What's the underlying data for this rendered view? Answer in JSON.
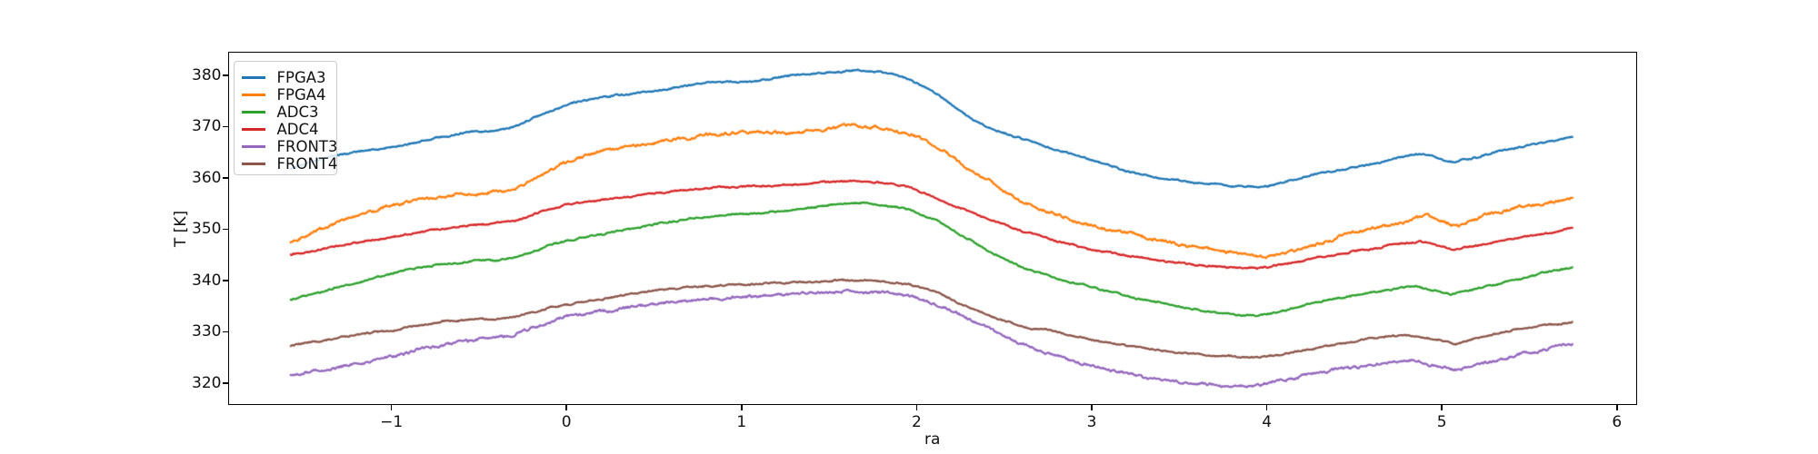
{
  "figure": {
    "background": "#ffffff",
    "text_color": "#111111",
    "spine_color": "#000000"
  },
  "chart_data": {
    "type": "line",
    "title": "",
    "xlabel": "ra",
    "ylabel": "T [K]",
    "xlim": [
      -1.93,
      6.11
    ],
    "ylim": [
      315.9,
      384.4
    ],
    "grid": false,
    "legend_position": "upper-left",
    "xticks": [
      {
        "v": -1,
        "label": "−1"
      },
      {
        "v": 0,
        "label": "0"
      },
      {
        "v": 1,
        "label": "1"
      },
      {
        "v": 2,
        "label": "2"
      },
      {
        "v": 3,
        "label": "3"
      },
      {
        "v": 4,
        "label": "4"
      },
      {
        "v": 5,
        "label": "5"
      },
      {
        "v": 6,
        "label": "6"
      }
    ],
    "yticks": [
      {
        "v": 320,
        "label": "320"
      },
      {
        "v": 330,
        "label": "330"
      },
      {
        "v": 340,
        "label": "340"
      },
      {
        "v": 350,
        "label": "350"
      },
      {
        "v": 360,
        "label": "360"
      },
      {
        "v": 370,
        "label": "370"
      },
      {
        "v": 380,
        "label": "380"
      }
    ],
    "series": [
      {
        "name": "FPGA3",
        "color": "#1f77b4",
        "noise": 0.18,
        "points": [
          [
            -1.58,
            361.6
          ],
          [
            -1.45,
            363.2
          ],
          [
            -1.3,
            364.5
          ],
          [
            -1.15,
            365.4
          ],
          [
            -1.0,
            366.0
          ],
          [
            -0.85,
            367.0
          ],
          [
            -0.7,
            368.0
          ],
          [
            -0.55,
            368.9
          ],
          [
            -0.42,
            369.2
          ],
          [
            -0.33,
            369.6
          ],
          [
            -0.22,
            371.3
          ],
          [
            -0.1,
            372.9
          ],
          [
            0,
            374.2
          ],
          [
            0.15,
            375.3
          ],
          [
            0.3,
            376.1
          ],
          [
            0.5,
            376.9
          ],
          [
            0.65,
            377.8
          ],
          [
            0.8,
            378.6
          ],
          [
            0.95,
            378.7
          ],
          [
            1.05,
            378.5
          ],
          [
            1.2,
            379.5
          ],
          [
            1.35,
            380.2
          ],
          [
            1.5,
            380.6
          ],
          [
            1.65,
            381.0
          ],
          [
            1.8,
            380.6
          ],
          [
            1.95,
            379.2
          ],
          [
            2.05,
            377.6
          ],
          [
            2.15,
            375.6
          ],
          [
            2.3,
            371.8
          ],
          [
            2.45,
            369.3
          ],
          [
            2.6,
            367.7
          ],
          [
            2.75,
            365.9
          ],
          [
            3.0,
            363.5
          ],
          [
            3.2,
            361.4
          ],
          [
            3.4,
            359.9
          ],
          [
            3.6,
            359.0
          ],
          [
            3.8,
            358.4
          ],
          [
            3.95,
            358.2
          ],
          [
            4.1,
            359.2
          ],
          [
            4.25,
            360.5
          ],
          [
            4.4,
            361.4
          ],
          [
            4.55,
            362.2
          ],
          [
            4.7,
            363.4
          ],
          [
            4.85,
            364.8
          ],
          [
            4.95,
            364.2
          ],
          [
            5.07,
            363.1
          ],
          [
            5.2,
            364.0
          ],
          [
            5.35,
            365.3
          ],
          [
            5.5,
            366.3
          ],
          [
            5.65,
            367.4
          ],
          [
            5.75,
            368.1
          ]
        ]
      },
      {
        "name": "FPGA4",
        "color": "#ff7f0e",
        "noise": 0.33,
        "points": [
          [
            -1.58,
            347.4
          ],
          [
            -1.45,
            349.3
          ],
          [
            -1.3,
            351.5
          ],
          [
            -1.2,
            352.7
          ],
          [
            -1.1,
            353.7
          ],
          [
            -1.0,
            354.7
          ],
          [
            -0.9,
            355.3
          ],
          [
            -0.75,
            356.1
          ],
          [
            -0.6,
            356.7
          ],
          [
            -0.45,
            357.1
          ],
          [
            -0.33,
            357.6
          ],
          [
            -0.25,
            358.6
          ],
          [
            -0.15,
            360.3
          ],
          [
            -0.05,
            362.2
          ],
          [
            0.05,
            363.7
          ],
          [
            0.2,
            365.2
          ],
          [
            0.35,
            366.1
          ],
          [
            0.5,
            366.9
          ],
          [
            0.65,
            367.7
          ],
          [
            0.8,
            368.3
          ],
          [
            0.95,
            368.7
          ],
          [
            1.1,
            368.9
          ],
          [
            1.25,
            368.7
          ],
          [
            1.4,
            369.2
          ],
          [
            1.55,
            370.0
          ],
          [
            1.65,
            370.2
          ],
          [
            1.8,
            369.6
          ],
          [
            1.95,
            368.5
          ],
          [
            2.05,
            367.3
          ],
          [
            2.15,
            365.6
          ],
          [
            2.3,
            361.8
          ],
          [
            2.45,
            358.5
          ],
          [
            2.6,
            355.2
          ],
          [
            2.75,
            353.4
          ],
          [
            2.9,
            351.6
          ],
          [
            3.05,
            350.2
          ],
          [
            3.25,
            349.0
          ],
          [
            3.45,
            347.3
          ],
          [
            3.65,
            346.2
          ],
          [
            3.85,
            345.1
          ],
          [
            4.0,
            344.7
          ],
          [
            4.15,
            345.8
          ],
          [
            4.3,
            347.0
          ],
          [
            4.5,
            349.4
          ],
          [
            4.65,
            350.4
          ],
          [
            4.8,
            351.6
          ],
          [
            4.92,
            352.8
          ],
          [
            5.08,
            350.4
          ],
          [
            5.25,
            352.6
          ],
          [
            5.4,
            354.0
          ],
          [
            5.55,
            354.9
          ],
          [
            5.65,
            355.3
          ],
          [
            5.75,
            356.3
          ]
        ]
      },
      {
        "name": "ADC3",
        "color": "#2ca02c",
        "noise": 0.18,
        "points": [
          [
            -1.58,
            336.2
          ],
          [
            -1.45,
            337.4
          ],
          [
            -1.3,
            338.8
          ],
          [
            -1.15,
            339.9
          ],
          [
            -1.0,
            341.3
          ],
          [
            -0.85,
            342.4
          ],
          [
            -0.7,
            343.2
          ],
          [
            -0.55,
            343.8
          ],
          [
            -0.4,
            344.1
          ],
          [
            -0.3,
            344.4
          ],
          [
            -0.2,
            345.5
          ],
          [
            -0.1,
            346.7
          ],
          [
            0,
            347.7
          ],
          [
            0.15,
            348.7
          ],
          [
            0.3,
            349.7
          ],
          [
            0.5,
            351.0
          ],
          [
            0.7,
            351.9
          ],
          [
            0.9,
            352.7
          ],
          [
            1.1,
            353.2
          ],
          [
            1.3,
            353.8
          ],
          [
            1.5,
            354.7
          ],
          [
            1.65,
            355.1
          ],
          [
            1.8,
            354.7
          ],
          [
            1.95,
            353.9
          ],
          [
            2.1,
            352.0
          ],
          [
            2.25,
            349.0
          ],
          [
            2.4,
            345.8
          ],
          [
            2.6,
            342.5
          ],
          [
            2.8,
            340.4
          ],
          [
            3.0,
            338.8
          ],
          [
            3.25,
            336.5
          ],
          [
            3.5,
            334.8
          ],
          [
            3.75,
            333.6
          ],
          [
            3.95,
            333.1
          ],
          [
            4.15,
            334.5
          ],
          [
            4.3,
            335.8
          ],
          [
            4.5,
            337.1
          ],
          [
            4.7,
            338.3
          ],
          [
            4.85,
            338.9
          ],
          [
            5.05,
            337.2
          ],
          [
            5.2,
            338.3
          ],
          [
            5.4,
            340.0
          ],
          [
            5.6,
            341.7
          ],
          [
            5.75,
            342.6
          ]
        ]
      },
      {
        "name": "ADC4",
        "color": "#d62728",
        "noise": 0.18,
        "points": [
          [
            -1.58,
            345.0
          ],
          [
            -1.45,
            345.8
          ],
          [
            -1.3,
            346.8
          ],
          [
            -1.15,
            347.6
          ],
          [
            -1.0,
            348.3
          ],
          [
            -0.85,
            349.4
          ],
          [
            -0.7,
            350.2
          ],
          [
            -0.55,
            350.8
          ],
          [
            -0.4,
            351.2
          ],
          [
            -0.3,
            351.5
          ],
          [
            -0.2,
            352.6
          ],
          [
            -0.1,
            353.8
          ],
          [
            0,
            354.8
          ],
          [
            0.15,
            355.6
          ],
          [
            0.3,
            356.2
          ],
          [
            0.5,
            356.9
          ],
          [
            0.7,
            357.6
          ],
          [
            0.9,
            358.2
          ],
          [
            1.1,
            358.5
          ],
          [
            1.3,
            358.7
          ],
          [
            1.5,
            359.1
          ],
          [
            1.65,
            359.4
          ],
          [
            1.8,
            359.1
          ],
          [
            1.95,
            358.4
          ],
          [
            2.1,
            356.2
          ],
          [
            2.25,
            354.0
          ],
          [
            2.4,
            352.0
          ],
          [
            2.6,
            349.7
          ],
          [
            2.8,
            347.8
          ],
          [
            3.0,
            346.0
          ],
          [
            3.2,
            344.8
          ],
          [
            3.45,
            343.6
          ],
          [
            3.7,
            342.8
          ],
          [
            3.95,
            342.3
          ],
          [
            4.15,
            343.4
          ],
          [
            4.3,
            344.5
          ],
          [
            4.5,
            345.7
          ],
          [
            4.7,
            346.8
          ],
          [
            4.87,
            347.6
          ],
          [
            5.07,
            345.9
          ],
          [
            5.2,
            346.8
          ],
          [
            5.4,
            348.2
          ],
          [
            5.6,
            349.2
          ],
          [
            5.75,
            350.1
          ]
        ]
      },
      {
        "name": "FRONT3",
        "color": "#9467bd",
        "noise": 0.3,
        "points": [
          [
            -1.58,
            321.7
          ],
          [
            -1.45,
            322.3
          ],
          [
            -1.3,
            323.1
          ],
          [
            -1.15,
            324.0
          ],
          [
            -1.0,
            325.0
          ],
          [
            -0.85,
            326.5
          ],
          [
            -0.7,
            327.5
          ],
          [
            -0.55,
            328.3
          ],
          [
            -0.4,
            328.9
          ],
          [
            -0.3,
            329.3
          ],
          [
            -0.2,
            330.6
          ],
          [
            -0.1,
            331.9
          ],
          [
            0,
            333.0
          ],
          [
            0.2,
            334.0
          ],
          [
            0.4,
            334.9
          ],
          [
            0.6,
            335.7
          ],
          [
            0.8,
            336.4
          ],
          [
            1.0,
            336.9
          ],
          [
            1.2,
            337.2
          ],
          [
            1.4,
            337.5
          ],
          [
            1.6,
            337.9
          ],
          [
            1.8,
            337.7
          ],
          [
            1.95,
            337.1
          ],
          [
            2.1,
            335.5
          ],
          [
            2.25,
            333.2
          ],
          [
            2.4,
            330.8
          ],
          [
            2.6,
            327.6
          ],
          [
            2.8,
            325.2
          ],
          [
            3.0,
            323.4
          ],
          [
            3.25,
            321.4
          ],
          [
            3.5,
            320.3
          ],
          [
            3.75,
            319.5
          ],
          [
            3.9,
            319.2
          ],
          [
            4.1,
            320.5
          ],
          [
            4.25,
            321.8
          ],
          [
            4.4,
            322.8
          ],
          [
            4.6,
            323.5
          ],
          [
            4.83,
            324.3
          ],
          [
            5.07,
            322.5
          ],
          [
            5.25,
            324.0
          ],
          [
            5.45,
            325.6
          ],
          [
            5.6,
            326.5
          ],
          [
            5.75,
            327.8
          ]
        ]
      },
      {
        "name": "FRONT4",
        "color": "#8c564b",
        "noise": 0.18,
        "points": [
          [
            -1.58,
            327.3
          ],
          [
            -1.45,
            328.0
          ],
          [
            -1.3,
            328.7
          ],
          [
            -1.15,
            329.6
          ],
          [
            -1.0,
            330.3
          ],
          [
            -0.85,
            331.3
          ],
          [
            -0.7,
            332.0
          ],
          [
            -0.55,
            332.3
          ],
          [
            -0.4,
            332.5
          ],
          [
            -0.3,
            332.8
          ],
          [
            -0.2,
            333.8
          ],
          [
            -0.1,
            334.7
          ],
          [
            0,
            335.4
          ],
          [
            0.2,
            336.3
          ],
          [
            0.4,
            337.5
          ],
          [
            0.6,
            338.4
          ],
          [
            0.8,
            339.0
          ],
          [
            1.0,
            339.2
          ],
          [
            1.2,
            339.4
          ],
          [
            1.4,
            339.7
          ],
          [
            1.6,
            340.1
          ],
          [
            1.8,
            339.9
          ],
          [
            1.95,
            339.2
          ],
          [
            2.1,
            337.8
          ],
          [
            2.25,
            335.5
          ],
          [
            2.4,
            333.3
          ],
          [
            2.6,
            331.1
          ],
          [
            2.8,
            330.0
          ],
          [
            3.0,
            328.3
          ],
          [
            3.25,
            327.1
          ],
          [
            3.5,
            325.9
          ],
          [
            3.75,
            325.2
          ],
          [
            3.95,
            324.9
          ],
          [
            4.15,
            326.0
          ],
          [
            4.3,
            327.0
          ],
          [
            4.5,
            328.1
          ],
          [
            4.7,
            329.1
          ],
          [
            4.85,
            329.2
          ],
          [
            5.08,
            327.7
          ],
          [
            5.25,
            329.3
          ],
          [
            5.45,
            330.5
          ],
          [
            5.6,
            331.2
          ],
          [
            5.75,
            331.8
          ]
        ]
      }
    ]
  }
}
